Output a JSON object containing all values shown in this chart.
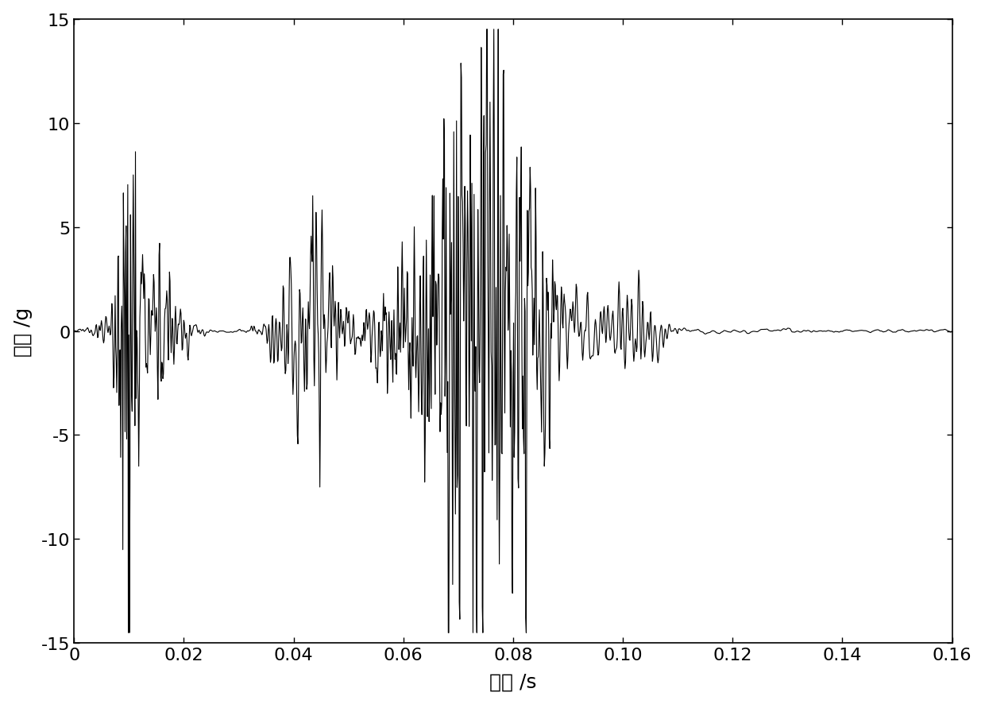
{
  "title": "",
  "xlabel": "时间 /s",
  "ylabel": "振动 /g",
  "xlim": [
    0,
    0.16
  ],
  "ylim": [
    -15,
    15
  ],
  "xticks": [
    0,
    0.02,
    0.04,
    0.06,
    0.08,
    0.1,
    0.12,
    0.14,
    0.16
  ],
  "yticks": [
    -15,
    -10,
    -5,
    0,
    5,
    10,
    15
  ],
  "line_color": "#000000",
  "line_width": 0.8,
  "background_color": "#ffffff",
  "sample_rate": 10000,
  "duration": 0.16,
  "noise_level": 0.12,
  "xlabel_fontsize": 18,
  "ylabel_fontsize": 18,
  "tick_fontsize": 16,
  "spine_linewidth": 1.2
}
